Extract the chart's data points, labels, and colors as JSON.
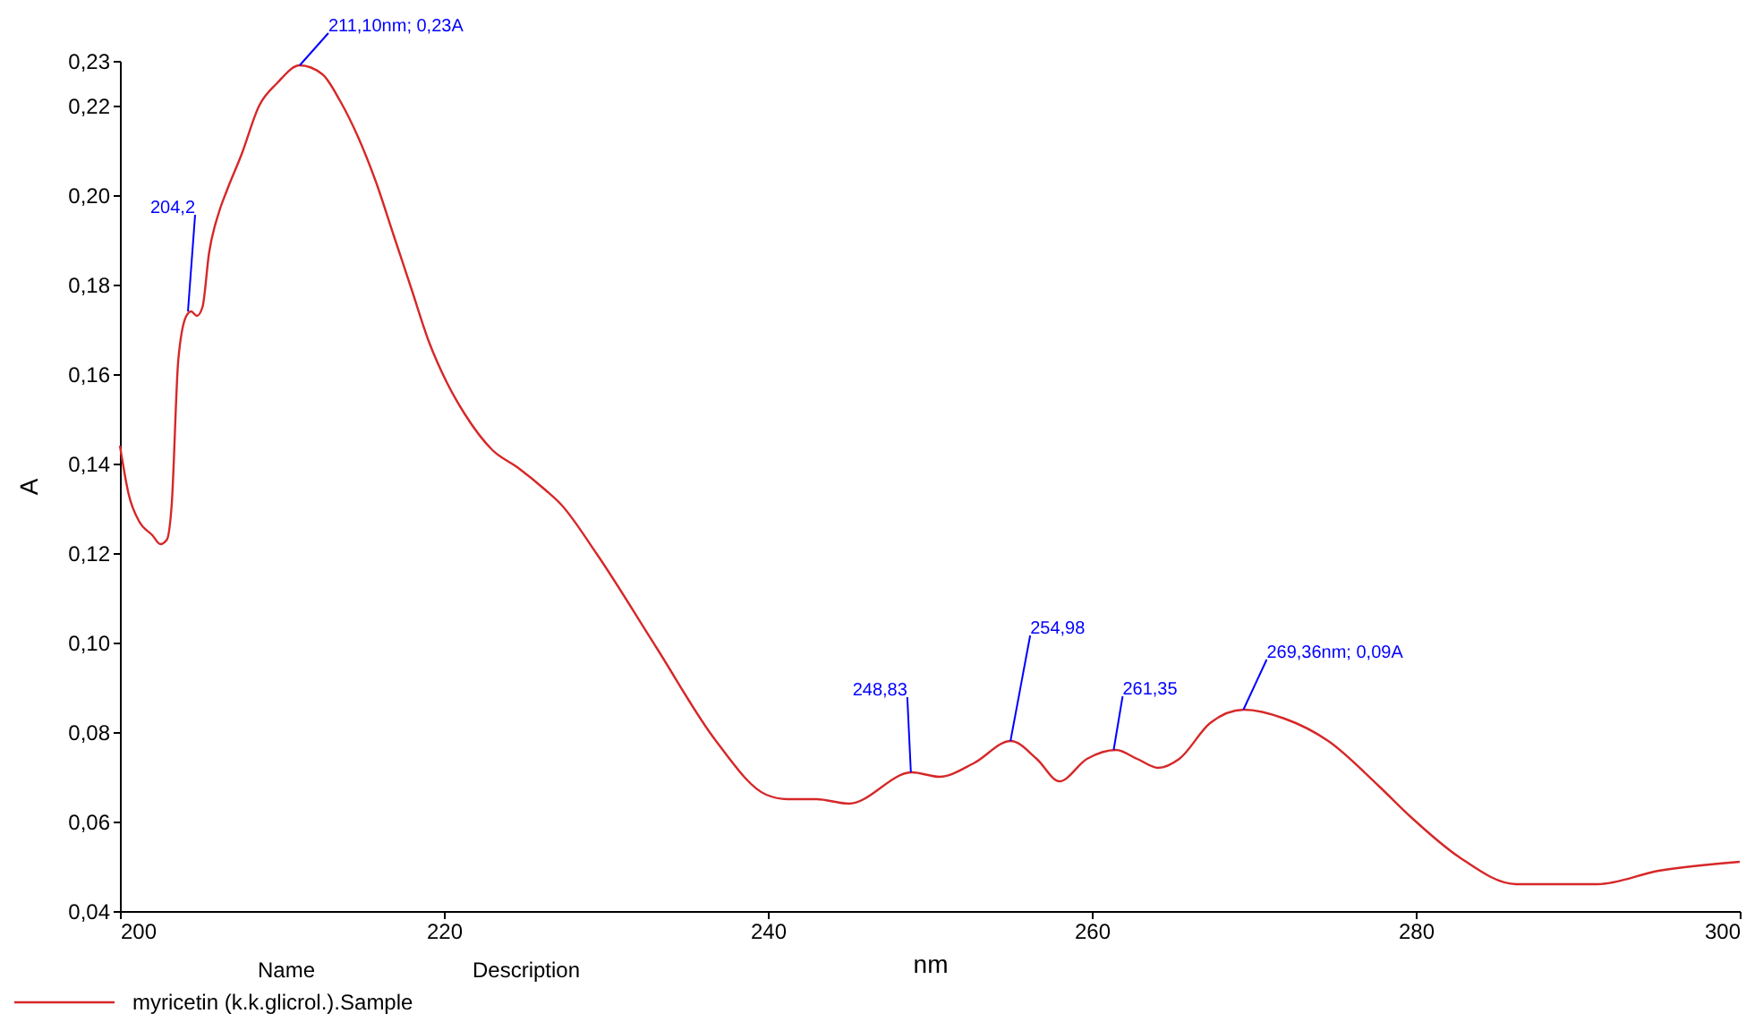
{
  "chart_data": {
    "type": "line",
    "xlabel": "nm",
    "ylabel": "A",
    "legend_title": "Name",
    "legend": "bottom",
    "annotations": [
      "Description",
      {
        "text": "204,2",
        "x": 204.2,
        "y": 0.174
      },
      {
        "text": "211,10nm; 0,23A",
        "x": 211.1,
        "y": 0.229
      },
      {
        "text": "248,83",
        "x": 248.83,
        "y": 0.071
      },
      {
        "text": "254,98",
        "x": 254.98,
        "y": 0.078
      },
      {
        "text": "261,35",
        "x": 261.35,
        "y": 0.076
      },
      {
        "text": "269,36nm; 0,09A",
        "x": 269.36,
        "y": 0.085
      }
    ],
    "xlim": [
      200,
      300
    ],
    "xticks": [
      200,
      220,
      240,
      260,
      280,
      300
    ],
    "ylim": [
      0.04,
      0.23
    ],
    "yticks": [
      {
        "value": 0.04,
        "label": "0,04"
      },
      {
        "value": 0.06,
        "label": "0,06"
      },
      {
        "value": 0.08,
        "label": "0,08"
      },
      {
        "value": 0.1,
        "label": "0,10"
      },
      {
        "value": 0.12,
        "label": "0,12"
      },
      {
        "value": 0.14,
        "label": "0,14"
      },
      {
        "value": 0.16,
        "label": "0,16"
      },
      {
        "value": 0.18,
        "label": "0,18"
      },
      {
        "value": 0.2,
        "label": "0,20"
      },
      {
        "value": 0.22,
        "label": "0,22"
      },
      {
        "value": 0.23,
        "label": "0,23"
      }
    ],
    "series": [
      {
        "name": "myricetin (k.k.glicrol.).Sample",
        "color": "#d62728",
        "x": [
          200,
          200.55,
          201.2,
          202,
          202.5,
          202.9,
          203.2,
          203.6,
          204.1,
          204.4,
          204.75,
          205.1,
          205.5,
          206.1,
          206.6,
          207.5,
          208.6,
          209.7,
          211.1,
          212.5,
          213.6,
          214.7,
          215.8,
          216.9,
          218,
          219.1,
          220.2,
          221.3,
          223,
          224.6,
          226.3,
          227.2,
          229.4,
          233.1,
          236.8,
          239.9,
          241.2,
          243,
          245,
          248.9,
          250.6,
          252.7,
          255,
          256.6,
          258,
          259.7,
          261.5,
          262.8,
          264.1,
          265.4,
          267.3,
          269.4,
          271.9,
          274.6,
          277.7,
          279.7,
          282.7,
          286.2,
          289.2,
          291.2,
          295,
          300
        ],
        "values": [
          0.144,
          0.133,
          0.127,
          0.124,
          0.122,
          0.123,
          0.131,
          0.163,
          0.173,
          0.174,
          0.173,
          0.175,
          0.187,
          0.196,
          0.201,
          0.209,
          0.22,
          0.225,
          0.229,
          0.227,
          0.221,
          0.213,
          0.203,
          0.191,
          0.179,
          0.167,
          0.158,
          0.151,
          0.143,
          0.139,
          0.134,
          0.131,
          0.12,
          0.099,
          0.078,
          0.066,
          0.065,
          0.065,
          0.064,
          0.071,
          0.07,
          0.073,
          0.078,
          0.074,
          0.069,
          0.074,
          0.076,
          0.074,
          0.072,
          0.074,
          0.082,
          0.085,
          0.083,
          0.078,
          0.068,
          0.061,
          0.052,
          0.046,
          0.046,
          0.046,
          0.049,
          0.051
        ]
      }
    ]
  }
}
